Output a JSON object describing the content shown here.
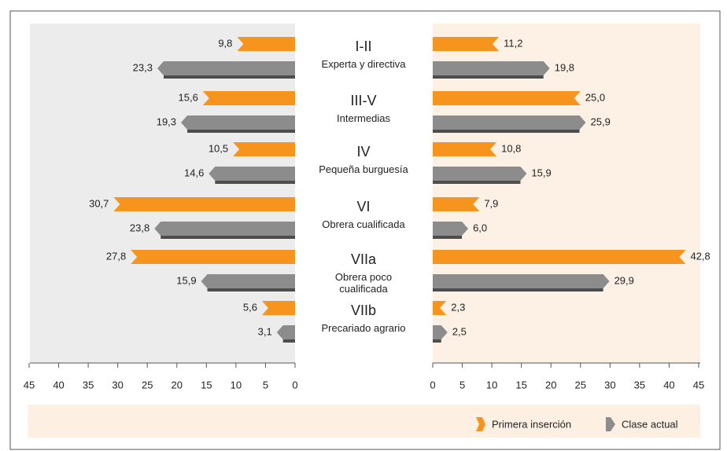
{
  "chart_data": {
    "type": "bar",
    "categories": [
      "I-II",
      "III-V",
      "IV",
      "VI",
      "VIIa",
      "VIIb"
    ],
    "descriptions": [
      "Experta y directiva",
      "Intermedias",
      "Pequeña burguesía",
      "Obrera cualificada",
      "Obrera poco cualificada",
      "Precariado agrario"
    ],
    "xlim": [
      0,
      45
    ],
    "xticks": [
      0,
      5,
      10,
      15,
      20,
      25,
      30,
      35,
      40,
      45
    ],
    "series": [
      {
        "name": "Primera inserción",
        "color": "#f7941d",
        "values": [
          9.8,
          15.6,
          10.5,
          30.7,
          27.8,
          5.6
        ],
        "value_labels": [
          "9,8",
          "15,6",
          "10,5",
          "30,7",
          "27,8",
          "5,6"
        ],
        "values_right": [
          11.2,
          25.0,
          10.8,
          7.9,
          42.8,
          2.3
        ],
        "value_labels_right": [
          "11,2",
          "25,0",
          "10,8",
          "7,9",
          "42,8",
          "2,3"
        ]
      },
      {
        "name": "Clase actual",
        "color": "#8c8c8c",
        "values": [
          23.3,
          19.3,
          14.6,
          23.8,
          15.9,
          3.1
        ],
        "value_labels": [
          "23,3",
          "19,3",
          "14,6",
          "23,8",
          "15,9",
          "3,1"
        ],
        "values_right": [
          19.8,
          25.9,
          15.9,
          6.0,
          29.9,
          2.5
        ],
        "value_labels_right": [
          "19,8",
          "25,9",
          "15,9",
          "6,0",
          "29,9",
          "2,5"
        ]
      }
    ],
    "legend": "bottom-right"
  }
}
